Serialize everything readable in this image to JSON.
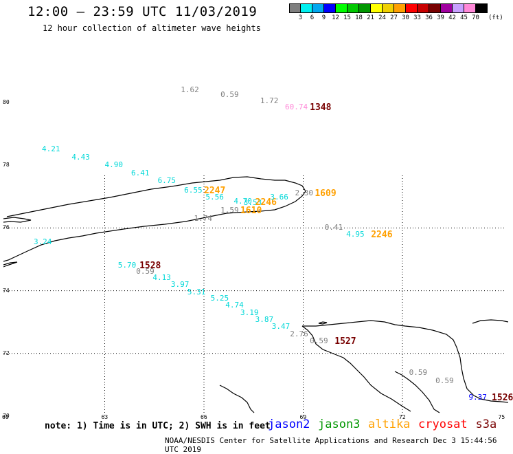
{
  "header": {
    "title": "12:00 — 23:59 UTC 11/03/2019",
    "subtitle": "12 hour collection of altimeter wave heights"
  },
  "legend": {
    "colors": [
      "#7f7f7f",
      "#00f0f0",
      "#00a8f0",
      "#0000ff",
      "#00ff00",
      "#00c800",
      "#009600",
      "#ffff00",
      "#f0d000",
      "#ffa000",
      "#ff0000",
      "#c80000",
      "#780000",
      "#a000a0",
      "#c8a0ff",
      "#ff88d8",
      "#000000"
    ],
    "labels": [
      "3",
      "6",
      "9",
      "12",
      "15",
      "18",
      "21",
      "24",
      "27",
      "30",
      "33",
      "36",
      "39",
      "42",
      "45",
      "70"
    ],
    "unit": "(ft)"
  },
  "axes": {
    "lat_labels": [
      {
        "lat": 80,
        "text": "80"
      },
      {
        "lat": 78,
        "text": "78"
      },
      {
        "lat": 76,
        "text": "76"
      },
      {
        "lat": 74,
        "text": "74"
      },
      {
        "lat": 72,
        "text": "72"
      },
      {
        "lat": 70,
        "text": "70"
      }
    ],
    "lon_labels": [
      {
        "lon": 60,
        "text": "60"
      },
      {
        "lon": 63,
        "text": "63"
      },
      {
        "lon": 66,
        "text": "66"
      },
      {
        "lon": 69,
        "text": "69"
      },
      {
        "lon": 72,
        "text": "72"
      },
      {
        "lon": 75,
        "text": "75"
      }
    ]
  },
  "observations": [
    {
      "text": "1.62",
      "color": "#7f7f7f",
      "lon": 65.3,
      "lat": 80.4,
      "big": false
    },
    {
      "text": "0.59",
      "color": "#7f7f7f",
      "lon": 66.5,
      "lat": 80.25,
      "big": false
    },
    {
      "text": "1.72",
      "color": "#7f7f7f",
      "lon": 67.7,
      "lat": 80.05,
      "big": false
    },
    {
      "text": "60.74",
      "color": "#ff88d8",
      "lon": 68.45,
      "lat": 79.85,
      "big": false
    },
    {
      "text": "1348",
      "color": "#780000",
      "lon": 69.2,
      "lat": 79.85,
      "big": true
    },
    {
      "text": "4.21",
      "color": "#00d8d8",
      "lon": 61.1,
      "lat": 78.5,
      "big": false
    },
    {
      "text": "4.43",
      "color": "#00d8d8",
      "lon": 62.0,
      "lat": 78.25,
      "big": false
    },
    {
      "text": "4.90",
      "color": "#00d8d8",
      "lon": 63.0,
      "lat": 78.0,
      "big": false
    },
    {
      "text": "6.41",
      "color": "#00d8d8",
      "lon": 63.8,
      "lat": 77.75,
      "big": false
    },
    {
      "text": "6.75",
      "color": "#00d8d8",
      "lon": 64.6,
      "lat": 77.5,
      "big": false
    },
    {
      "text": "6.55",
      "color": "#00d8d8",
      "lon": 65.4,
      "lat": 77.2,
      "big": false
    },
    {
      "text": "2247",
      "color": "#ffa000",
      "lon": 66.0,
      "lat": 77.2,
      "big": true
    },
    {
      "text": "5.56",
      "color": "#00d8d8",
      "lon": 66.05,
      "lat": 76.98,
      "big": false
    },
    {
      "text": "4.70",
      "color": "#00d8d8",
      "lon": 66.9,
      "lat": 76.85,
      "big": false
    },
    {
      "text": "3.53",
      "color": "#00d8d8",
      "lon": 67.2,
      "lat": 76.8,
      "big": false
    },
    {
      "text": "2246",
      "color": "#ffa000",
      "lon": 67.55,
      "lat": 76.83,
      "big": true
    },
    {
      "text": "3.66",
      "color": "#00d8d8",
      "lon": 68.0,
      "lat": 76.97,
      "big": false
    },
    {
      "text": "2.30",
      "color": "#7f7f7f",
      "lon": 68.75,
      "lat": 77.1,
      "big": false
    },
    {
      "text": "1609",
      "color": "#ffa000",
      "lon": 69.35,
      "lat": 77.1,
      "big": true
    },
    {
      "text": "1.59",
      "color": "#7f7f7f",
      "lon": 66.5,
      "lat": 76.55,
      "big": false
    },
    {
      "text": "1610",
      "color": "#ffa000",
      "lon": 67.1,
      "lat": 76.55,
      "big": true
    },
    {
      "text": "1.74",
      "color": "#7f7f7f",
      "lon": 65.7,
      "lat": 76.3,
      "big": false
    },
    {
      "text": "0.41",
      "color": "#7f7f7f",
      "lon": 69.65,
      "lat": 76.0,
      "big": false
    },
    {
      "text": "4.95",
      "color": "#00d8d8",
      "lon": 70.3,
      "lat": 75.78,
      "big": false
    },
    {
      "text": "2246",
      "color": "#ffa000",
      "lon": 71.05,
      "lat": 75.78,
      "big": true
    },
    {
      "text": "3.24",
      "color": "#00d8d8",
      "lon": 60.85,
      "lat": 75.55,
      "big": false
    },
    {
      "text": "5.70",
      "color": "#00d8d8",
      "lon": 63.4,
      "lat": 74.8,
      "big": false
    },
    {
      "text": "1528",
      "color": "#780000",
      "lon": 64.05,
      "lat": 74.8,
      "big": true
    },
    {
      "text": "0.59",
      "color": "#7f7f7f",
      "lon": 63.95,
      "lat": 74.6,
      "big": false
    },
    {
      "text": "4.13",
      "color": "#00d8d8",
      "lon": 64.45,
      "lat": 74.4,
      "big": false
    },
    {
      "text": "3.97",
      "color": "#00d8d8",
      "lon": 65.0,
      "lat": 74.18,
      "big": false
    },
    {
      "text": "5.31",
      "color": "#00d8d8",
      "lon": 65.5,
      "lat": 73.95,
      "big": false
    },
    {
      "text": "5.25",
      "color": "#00d8d8",
      "lon": 66.2,
      "lat": 73.75,
      "big": false
    },
    {
      "text": "4.74",
      "color": "#00d8d8",
      "lon": 66.65,
      "lat": 73.52,
      "big": false
    },
    {
      "text": "3.19",
      "color": "#00d8d8",
      "lon": 67.1,
      "lat": 73.3,
      "big": false
    },
    {
      "text": "3.87",
      "color": "#00d8d8",
      "lon": 67.55,
      "lat": 73.08,
      "big": false
    },
    {
      "text": "3.47",
      "color": "#00d8d8",
      "lon": 68.05,
      "lat": 72.84,
      "big": false
    },
    {
      "text": "2.76",
      "color": "#7f7f7f",
      "lon": 68.6,
      "lat": 72.62,
      "big": false
    },
    {
      "text": "0.59",
      "color": "#7f7f7f",
      "lon": 69.2,
      "lat": 72.4,
      "big": false
    },
    {
      "text": "1527",
      "color": "#780000",
      "lon": 69.95,
      "lat": 72.4,
      "big": true
    },
    {
      "text": "0.59",
      "color": "#7f7f7f",
      "lon": 72.2,
      "lat": 71.38,
      "big": false
    },
    {
      "text": "0.59",
      "color": "#7f7f7f",
      "lon": 73.0,
      "lat": 71.12,
      "big": false
    },
    {
      "text": "9.37",
      "color": "#0000ff",
      "lon": 74.0,
      "lat": 70.6,
      "big": false
    },
    {
      "text": "1526",
      "color": "#780000",
      "lon": 74.7,
      "lat": 70.6,
      "big": true
    }
  ],
  "note": "note: 1) Time is in UTC; 2) SWH is in feet",
  "missions": [
    {
      "text": "jason2",
      "color": "#0000ff"
    },
    {
      "text": "jason3",
      "color": "#009600"
    },
    {
      "text": "altika",
      "color": "#ffa000"
    },
    {
      "text": "cryosat",
      "color": "#ff0000"
    },
    {
      "text": "s3a",
      "color": "#780000"
    }
  ],
  "footer": "NOAA/NESDIS Center for Satellite Applications and Research    Dec  3 15:44:56 UTC 2019"
}
